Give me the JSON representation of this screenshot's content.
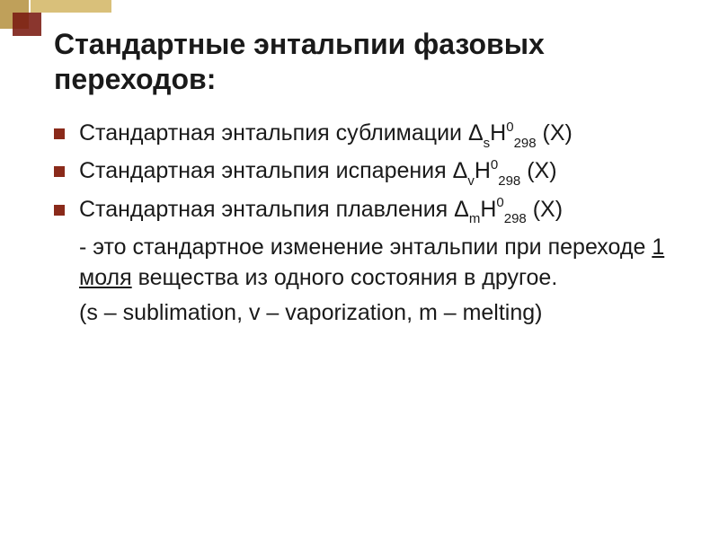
{
  "theme": {
    "bullet_color": "#8a2a1a",
    "deco_gold": "#bfa05a",
    "deco_gold_light": "#d9c07a",
    "deco_maroon": "#7a1a11",
    "text_color": "#1a1a1a",
    "background": "#ffffff",
    "title_fontsize": 32,
    "body_fontsize": 25
  },
  "title": "Стандартные энтальпии фазовых переходов:",
  "items": [
    {
      "bulleted": true,
      "prefix": "Стандартная энтальпия сублимации Δ",
      "sub": "s",
      "mid": "Н",
      "sup": "0",
      "sub2": "298",
      "suffix": " (Х)"
    },
    {
      "bulleted": true,
      "prefix": "Стандартная энтальпия испарения Δ",
      "sub": "v",
      "mid": "Н",
      "sup": "0",
      "sub2": "298",
      "suffix": " (Х)"
    },
    {
      "bulleted": true,
      "prefix": "Стандартная энтальпия плавления Δ",
      "sub": "m",
      "mid": "Н",
      "sup": "0",
      "sub2": "298",
      "suffix": " (Х)"
    }
  ],
  "definition": {
    "pre": " - это стандартное изменение энтальпии при переходе ",
    "underlined": "1 моля",
    "post": " вещества из одного состояния в другое."
  },
  "legend": " (s – sublimation, v – vaporization, m – melting)"
}
